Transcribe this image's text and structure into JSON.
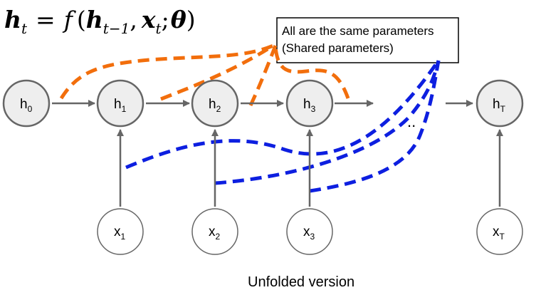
{
  "equation": {
    "lhs": "h",
    "lhs_sub": "t",
    "equals": "=",
    "func": "f",
    "open_paren": "(",
    "arg1": "h",
    "arg1_sub": "t−1",
    "comma1": ",",
    "arg2": "x",
    "arg2_sub": "t",
    "semicolon": ";",
    "arg3": "θ",
    "close_paren": ")"
  },
  "callout": {
    "line1": "All are the same parameters",
    "line2": "(Shared parameters)"
  },
  "hidden_nodes": [
    {
      "base": "h",
      "sub": "0"
    },
    {
      "base": "h",
      "sub": "1"
    },
    {
      "base": "h",
      "sub": "2"
    },
    {
      "base": "h",
      "sub": "3"
    },
    {
      "base": "h",
      "sub": "T"
    }
  ],
  "input_nodes": [
    {
      "base": "x",
      "sub": "1"
    },
    {
      "base": "x",
      "sub": "2"
    },
    {
      "base": "x",
      "sub": "3"
    },
    {
      "base": "x",
      "sub": "T"
    }
  ],
  "ellipsis": "..",
  "caption": "Unfolded version",
  "colors": {
    "node_fill": "#eeeeee",
    "node_stroke": "#666666",
    "arrow": "#666666",
    "orange": "#f26e0c",
    "blue": "#0d1fe0"
  }
}
